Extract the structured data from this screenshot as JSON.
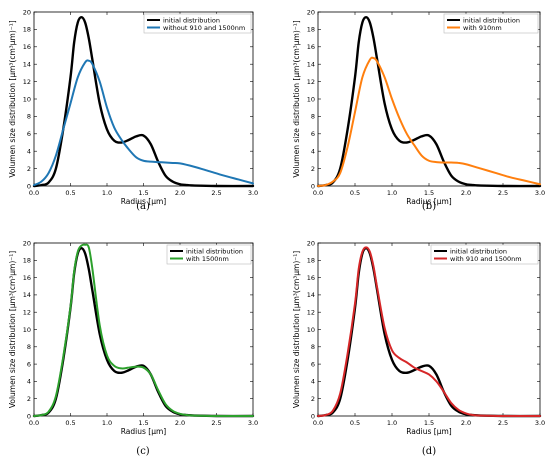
{
  "figure": {
    "xlabel": "Radius [μm]",
    "ylabel": "Volumen size distribution [μm³(cm³μm)⁻¹]"
  },
  "chart_data": [
    {
      "type": "line",
      "panel_label": "(a)",
      "xlabel": "Radius [μm]",
      "ylabel": "Volumen size distribution [μm³(cm³μm)⁻¹]",
      "xlim": [
        0,
        3.0
      ],
      "ylim": [
        0,
        20
      ],
      "xticks": [
        "0.0",
        "0.5",
        "1.0",
        "1.5",
        "2.0",
        "2.5",
        "3.0"
      ],
      "yticks": [
        "0",
        "2",
        "4",
        "6",
        "8",
        "10",
        "12",
        "14",
        "16",
        "18",
        "20"
      ],
      "grid": false,
      "legend": "top-right",
      "series": [
        {
          "name": "initial distribution",
          "color": "#000000",
          "x": [
            0,
            0.1,
            0.2,
            0.3,
            0.4,
            0.5,
            0.55,
            0.6,
            0.65,
            0.7,
            0.75,
            0.8,
            0.9,
            1.0,
            1.1,
            1.2,
            1.3,
            1.4,
            1.5,
            1.6,
            1.7,
            1.8,
            1.9,
            2.0,
            2.1,
            2.2,
            2.5,
            3.0
          ],
          "y": [
            0,
            0.1,
            0.4,
            2.0,
            6.5,
            12.5,
            16.5,
            18.8,
            19.4,
            18.8,
            17.0,
            14.5,
            9.5,
            6.5,
            5.2,
            5.0,
            5.3,
            5.7,
            5.8,
            4.8,
            2.8,
            1.2,
            0.5,
            0.2,
            0.1,
            0.05,
            0,
            0
          ]
        },
        {
          "name": "without 910 and 1500nm",
          "color": "#1f77b4",
          "x": [
            0,
            0.1,
            0.2,
            0.3,
            0.4,
            0.5,
            0.6,
            0.7,
            0.75,
            0.8,
            0.9,
            1.0,
            1.1,
            1.2,
            1.3,
            1.4,
            1.5,
            1.6,
            1.7,
            1.8,
            1.9,
            2.0,
            2.2,
            2.4,
            2.6,
            2.8,
            3.0
          ],
          "y": [
            0.1,
            0.5,
            1.5,
            3.5,
            6.5,
            9.5,
            12.5,
            14.2,
            14.4,
            14.0,
            12.0,
            9.0,
            6.7,
            5.3,
            4.2,
            3.3,
            2.9,
            2.8,
            2.75,
            2.7,
            2.65,
            2.6,
            2.2,
            1.7,
            1.2,
            0.75,
            0.3
          ]
        }
      ]
    },
    {
      "type": "line",
      "panel_label": "(b)",
      "xlabel": "Radius [μm]",
      "ylabel": "Volumen size distribution [μm³(cm³μm)⁻¹]",
      "xlim": [
        0,
        3.0
      ],
      "ylim": [
        0,
        20
      ],
      "xticks": [
        "0.0",
        "0.5",
        "1.0",
        "1.5",
        "2.0",
        "2.5",
        "3.0"
      ],
      "yticks": [
        "0",
        "2",
        "4",
        "6",
        "8",
        "10",
        "12",
        "14",
        "16",
        "18",
        "20"
      ],
      "grid": false,
      "legend": "top-right",
      "series": [
        {
          "name": "initial distribution",
          "color": "#000000",
          "x": [
            0,
            0.1,
            0.2,
            0.3,
            0.4,
            0.5,
            0.55,
            0.6,
            0.65,
            0.7,
            0.75,
            0.8,
            0.9,
            1.0,
            1.1,
            1.2,
            1.3,
            1.4,
            1.5,
            1.6,
            1.7,
            1.8,
            1.9,
            2.0,
            2.1,
            2.2,
            2.5,
            3.0
          ],
          "y": [
            0,
            0.1,
            0.4,
            2.0,
            6.5,
            12.5,
            16.5,
            18.8,
            19.4,
            18.8,
            17.0,
            14.5,
            9.5,
            6.5,
            5.2,
            5.0,
            5.3,
            5.7,
            5.8,
            4.8,
            2.8,
            1.2,
            0.5,
            0.2,
            0.1,
            0.05,
            0,
            0
          ]
        },
        {
          "name": "with 910nm",
          "color": "#ff7f0e",
          "x": [
            0,
            0.1,
            0.2,
            0.3,
            0.4,
            0.5,
            0.6,
            0.7,
            0.75,
            0.8,
            0.9,
            1.0,
            1.1,
            1.2,
            1.3,
            1.4,
            1.5,
            1.6,
            1.7,
            1.8,
            1.9,
            2.0,
            2.2,
            2.4,
            2.6,
            2.8,
            3.0
          ],
          "y": [
            0,
            0.1,
            0.5,
            1.5,
            4.5,
            8.5,
            12.5,
            14.5,
            14.7,
            14.3,
            12.5,
            10.0,
            7.8,
            6.0,
            4.7,
            3.5,
            2.9,
            2.75,
            2.7,
            2.7,
            2.65,
            2.5,
            2.0,
            1.5,
            1.0,
            0.6,
            0.2
          ]
        }
      ]
    },
    {
      "type": "line",
      "panel_label": "(c)",
      "xlabel": "Radius [μm]",
      "ylabel": "Volumen size distribution [μm³(cm³μm)⁻¹]",
      "xlim": [
        0,
        3.0
      ],
      "ylim": [
        0,
        20
      ],
      "xticks": [
        "0.0",
        "0.5",
        "1.0",
        "1.5",
        "2.0",
        "2.5",
        "3.0"
      ],
      "yticks": [
        "0",
        "2",
        "4",
        "6",
        "8",
        "10",
        "12",
        "14",
        "16",
        "18",
        "20"
      ],
      "grid": false,
      "legend": "top-right",
      "series": [
        {
          "name": "initial distribution",
          "color": "#000000",
          "x": [
            0,
            0.1,
            0.2,
            0.3,
            0.4,
            0.5,
            0.55,
            0.6,
            0.65,
            0.7,
            0.75,
            0.8,
            0.9,
            1.0,
            1.1,
            1.2,
            1.3,
            1.4,
            1.5,
            1.6,
            1.7,
            1.8,
            1.9,
            2.0,
            2.1,
            2.2,
            2.5,
            3.0
          ],
          "y": [
            0,
            0.1,
            0.4,
            2.0,
            6.5,
            12.5,
            16.5,
            18.8,
            19.4,
            18.8,
            17.0,
            14.5,
            9.5,
            6.5,
            5.2,
            5.0,
            5.3,
            5.7,
            5.8,
            4.8,
            2.8,
            1.2,
            0.5,
            0.2,
            0.1,
            0.05,
            0,
            0
          ]
        },
        {
          "name": "with 1500nm",
          "color": "#2ca02c",
          "x": [
            0,
            0.1,
            0.2,
            0.3,
            0.4,
            0.5,
            0.55,
            0.6,
            0.65,
            0.7,
            0.75,
            0.8,
            0.9,
            1.0,
            1.1,
            1.2,
            1.3,
            1.4,
            1.5,
            1.6,
            1.7,
            1.8,
            1.9,
            2.0,
            2.1,
            2.2,
            2.5,
            3.0
          ],
          "y": [
            0,
            0.1,
            0.5,
            2.3,
            6.8,
            12.6,
            16.7,
            19.0,
            19.7,
            19.8,
            19.5,
            17.0,
            10.5,
            7.0,
            5.8,
            5.5,
            5.6,
            5.7,
            5.6,
            4.8,
            3.0,
            1.4,
            0.6,
            0.25,
            0.1,
            0.05,
            0,
            0
          ]
        }
      ]
    },
    {
      "type": "line",
      "panel_label": "(d)",
      "xlabel": "Radius [μm]",
      "ylabel": "Volumen size distribution [μm³(cm³μm)⁻¹]",
      "xlim": [
        0,
        3.0
      ],
      "ylim": [
        0,
        20
      ],
      "xticks": [
        "0.0",
        "0.5",
        "1.0",
        "1.5",
        "2.0",
        "2.5",
        "3.0"
      ],
      "yticks": [
        "0",
        "2",
        "4",
        "6",
        "8",
        "10",
        "12",
        "14",
        "16",
        "18",
        "20"
      ],
      "grid": false,
      "legend": "top-right",
      "series": [
        {
          "name": "initial distribution",
          "color": "#000000",
          "x": [
            0,
            0.1,
            0.2,
            0.3,
            0.4,
            0.5,
            0.55,
            0.6,
            0.65,
            0.7,
            0.75,
            0.8,
            0.9,
            1.0,
            1.1,
            1.2,
            1.3,
            1.4,
            1.5,
            1.6,
            1.7,
            1.8,
            1.9,
            2.0,
            2.1,
            2.2,
            2.5,
            3.0
          ],
          "y": [
            0,
            0.1,
            0.4,
            2.0,
            6.5,
            12.5,
            16.5,
            18.8,
            19.4,
            18.8,
            17.0,
            14.5,
            9.5,
            6.5,
            5.2,
            5.0,
            5.3,
            5.7,
            5.8,
            4.8,
            2.8,
            1.2,
            0.5,
            0.2,
            0.1,
            0.05,
            0,
            0
          ]
        },
        {
          "name": "with 910 and 1500nm",
          "color": "#d62728",
          "x": [
            0,
            0.1,
            0.2,
            0.3,
            0.4,
            0.5,
            0.55,
            0.6,
            0.65,
            0.7,
            0.75,
            0.8,
            0.9,
            1.0,
            1.1,
            1.2,
            1.3,
            1.4,
            1.5,
            1.6,
            1.7,
            1.8,
            1.9,
            2.0,
            2.1,
            2.2,
            2.5,
            3.0
          ],
          "y": [
            0,
            0.1,
            0.6,
            2.6,
            7.2,
            13.0,
            17.0,
            19.0,
            19.5,
            19.0,
            17.3,
            14.8,
            10.2,
            7.6,
            6.7,
            6.2,
            5.6,
            5.2,
            4.8,
            4.0,
            2.8,
            1.5,
            0.7,
            0.3,
            0.1,
            0.05,
            0,
            0
          ]
        }
      ]
    }
  ]
}
